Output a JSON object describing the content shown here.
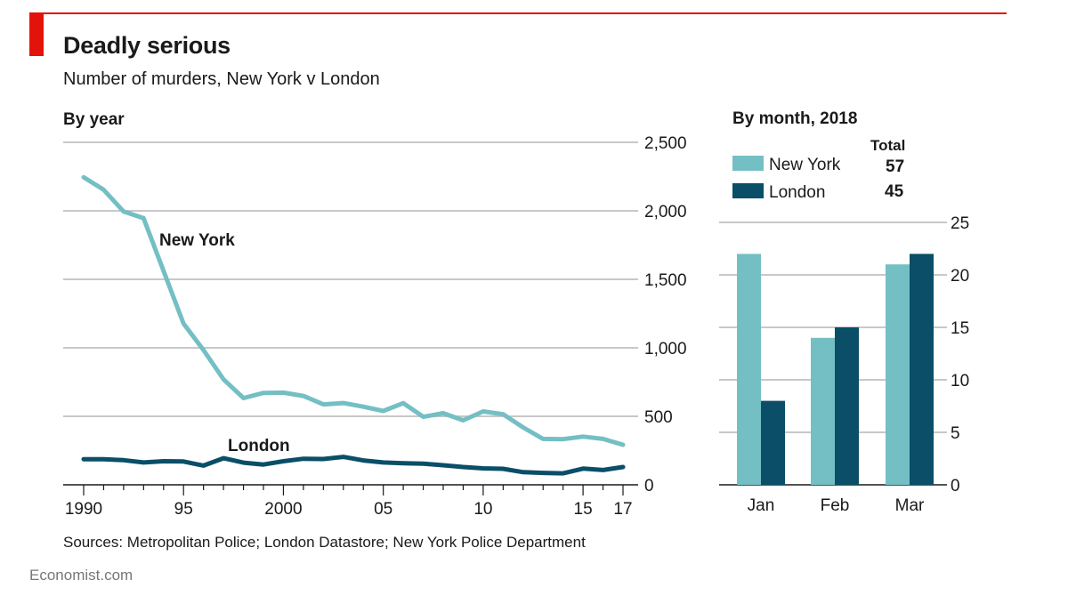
{
  "title": "Deadly serious",
  "subtitle": "Number of murders, New York v London",
  "source": "Sources: Metropolitan Police; London Datastore; New York Police Department",
  "brand": "Economist.com",
  "colors": {
    "new_york": "#74bfc4",
    "london": "#0a4e68",
    "accent": "#e3120b",
    "grid": "#c8c8c8"
  },
  "chart_data": [
    {
      "type": "line",
      "title": "By year",
      "x": [
        1990,
        1991,
        1992,
        1993,
        1994,
        1995,
        1996,
        1997,
        1998,
        1999,
        2000,
        2001,
        2002,
        2003,
        2004,
        2005,
        2006,
        2007,
        2008,
        2009,
        2010,
        2011,
        2012,
        2013,
        2014,
        2015,
        2016,
        2017
      ],
      "series": [
        {
          "name": "New York",
          "color": "#74bfc4",
          "values": [
            2245,
            2154,
            1995,
            1946,
            1561,
            1177,
            983,
            770,
            633,
            671,
            673,
            649,
            587,
            597,
            570,
            539,
            596,
            496,
            523,
            471,
            536,
            515,
            419,
            335,
            333,
            352,
            335,
            292
          ]
        },
        {
          "name": "London",
          "color": "#0a4e68",
          "values": [
            187,
            187,
            180,
            163,
            172,
            170,
            140,
            194,
            162,
            148,
            172,
            190,
            188,
            204,
            178,
            163,
            158,
            154,
            143,
            130,
            120,
            117,
            92,
            87,
            84,
            118,
            108,
            130
          ]
        }
      ],
      "ylim": [
        0,
        2500
      ],
      "yticks": [
        0,
        500,
        1000,
        1500,
        2000,
        2500
      ],
      "ytick_labels": [
        "0",
        "500",
        "1,000",
        "1,500",
        "2,000",
        "2,500"
      ],
      "xticks": [
        1990,
        1995,
        2000,
        2005,
        2010,
        2015,
        2017
      ],
      "xtick_labels": [
        "1990",
        "95",
        "2000",
        "05",
        "10",
        "15",
        "17"
      ],
      "annotations": [
        "New York",
        "London"
      ]
    },
    {
      "type": "bar",
      "title": "By month, 2018",
      "categories": [
        "Jan",
        "Feb",
        "Mar"
      ],
      "series": [
        {
          "name": "New York",
          "color": "#74bfc4",
          "values": [
            22,
            14,
            21
          ],
          "total": "57"
        },
        {
          "name": "London",
          "color": "#0a4e68",
          "values": [
            8,
            15,
            22
          ],
          "total": "45"
        }
      ],
      "total_label": "Total",
      "ylim": [
        0,
        25
      ],
      "yticks": [
        0,
        5,
        10,
        15,
        20,
        25
      ],
      "ytick_labels": [
        "0",
        "5",
        "10",
        "15",
        "20",
        "25"
      ]
    }
  ]
}
